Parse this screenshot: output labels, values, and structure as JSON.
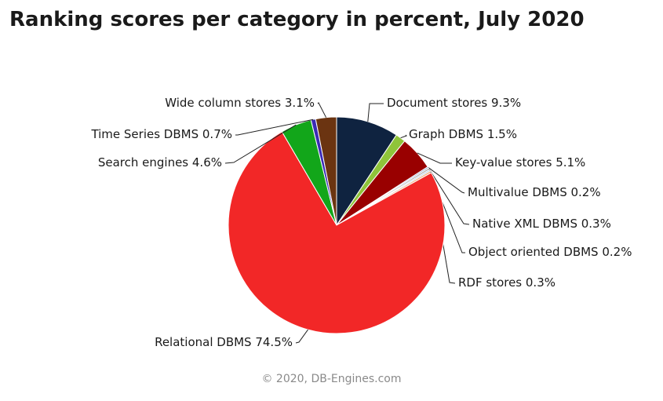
{
  "chart_data": {
    "type": "pie",
    "title": "Ranking scores per category in percent, July 2020",
    "unit": "%",
    "slices": [
      {
        "label": "Document stores",
        "value": 9.3,
        "color": "#0f2340"
      },
      {
        "label": "Graph DBMS",
        "value": 1.5,
        "color": "#8fc43a"
      },
      {
        "label": "Key-value stores",
        "value": 5.1,
        "color": "#990000"
      },
      {
        "label": "Multivalue DBMS",
        "value": 0.2,
        "color": "#7f95c9"
      },
      {
        "label": "Native XML DBMS",
        "value": 0.3,
        "color": "#b7b7b7"
      },
      {
        "label": "Object oriented DBMS",
        "value": 0.2,
        "color": "#a2c6e6"
      },
      {
        "label": "RDF stores",
        "value": 0.3,
        "color": "#f2b489"
      },
      {
        "label": "Relational DBMS",
        "value": 74.5,
        "color": "#f22727"
      },
      {
        "label": "Search engines",
        "value": 4.6,
        "color": "#12a61a"
      },
      {
        "label": "Time Series DBMS",
        "value": 0.7,
        "color": "#3b2ab5"
      },
      {
        "label": "Wide column stores",
        "value": 3.1,
        "color": "#6b3411"
      }
    ]
  },
  "credit": "© 2020, DB-Engines.com"
}
